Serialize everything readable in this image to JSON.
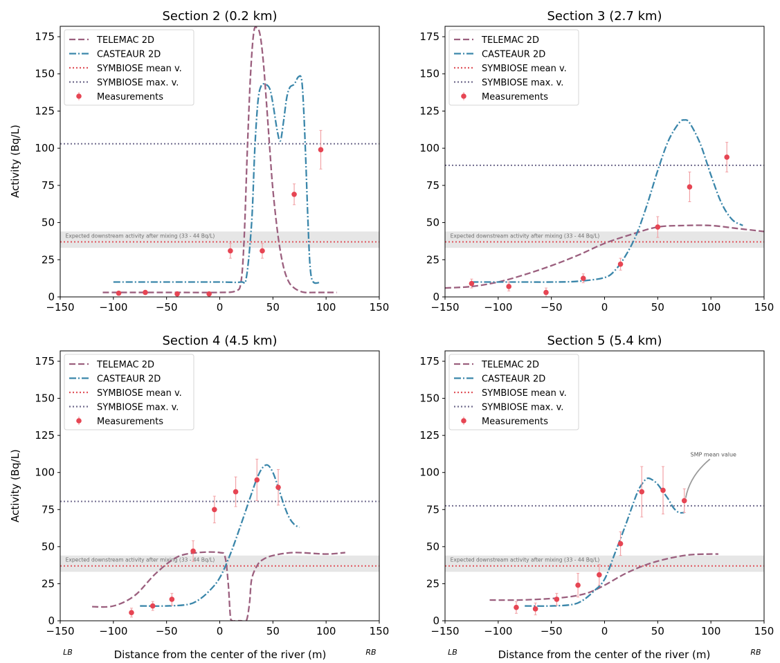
{
  "figure": {
    "xlabel": "Distance from the center of the river (m)",
    "ylabel": "Activity (Bq/L)",
    "left_bank_label": "LB",
    "right_bank_label": "RB",
    "band_label": "Expected downstream activity after mixing (33 - 44 Bq/L)"
  },
  "legend": [
    "TELEMAC 2D",
    "CASTEAUR 2D",
    "SYMBIOSE mean v.",
    "SYMBIOSE max. v.",
    "Measurements"
  ],
  "colors": {
    "telemac": "#9b5f7e",
    "casteaur": "#3a86aa",
    "symbiose_mean": "#e0535c",
    "symbiose_max": "#6f6a8c",
    "measurements": "#e64553",
    "errorbar": "#f2a1a5",
    "band": "#d9d9d9"
  },
  "chart_data": [
    {
      "type": "line",
      "title": "Section 2 (0.2 km)",
      "xlim": [
        -150,
        150
      ],
      "ylim": [
        0,
        182
      ],
      "xticks": [
        -150,
        -100,
        -50,
        0,
        50,
        100,
        150
      ],
      "yticks": [
        0,
        25,
        50,
        75,
        100,
        125,
        150,
        175
      ],
      "band": [
        33,
        44
      ],
      "symbiose_mean": 37,
      "symbiose_max": 103,
      "series": [
        {
          "name": "TELEMAC 2D",
          "x": [
            -110,
            -80,
            -40,
            0,
            15,
            20,
            23,
            26,
            29,
            32,
            35,
            38,
            41,
            44,
            47,
            50,
            55,
            60,
            65,
            70,
            75,
            80,
            90,
            100,
            110
          ],
          "y": [
            3,
            3,
            3,
            3,
            4,
            10,
            40,
            100,
            150,
            178,
            181,
            176,
            158,
            130,
            100,
            72,
            40,
            20,
            10,
            6,
            4,
            3,
            3,
            3,
            3
          ]
        },
        {
          "name": "CASTEAUR 2D",
          "x": [
            -100,
            -50,
            0,
            20,
            25,
            30,
            33,
            36,
            39,
            43,
            47,
            50,
            54,
            57,
            60,
            63,
            66,
            70,
            74,
            77,
            79,
            81,
            83,
            85,
            88,
            95
          ],
          "y": [
            10,
            10,
            10,
            10,
            13,
            50,
            100,
            132,
            142,
            143,
            140,
            130,
            112,
            105,
            118,
            134,
            141,
            143,
            148,
            146,
            125,
            90,
            50,
            20,
            10,
            10
          ]
        }
      ],
      "measurements": [
        {
          "x": -95,
          "y": 2.5,
          "err": 0.8
        },
        {
          "x": -70,
          "y": 3,
          "err": 0.8
        },
        {
          "x": -40,
          "y": 2,
          "err": 0.8
        },
        {
          "x": -10,
          "y": 2,
          "err": 0.8
        },
        {
          "x": 10,
          "y": 31,
          "err": 5
        },
        {
          "x": 40,
          "y": 31,
          "err": 5
        },
        {
          "x": 70,
          "y": 69,
          "err": 7
        },
        {
          "x": 95,
          "y": 99,
          "err": 13
        }
      ],
      "annotation": null
    },
    {
      "type": "line",
      "title": "Section 3 (2.7 km)",
      "xlim": [
        -150,
        150
      ],
      "ylim": [
        0,
        182
      ],
      "xticks": [
        -150,
        -100,
        -50,
        0,
        50,
        100,
        150
      ],
      "yticks": [
        0,
        25,
        50,
        75,
        100,
        125,
        150,
        175
      ],
      "band": [
        33,
        44
      ],
      "symbiose_mean": 37,
      "symbiose_max": 88.5,
      "series": [
        {
          "name": "TELEMAC 2D",
          "x": [
            -150,
            -125,
            -100,
            -75,
            -50,
            -25,
            0,
            25,
            50,
            75,
            100,
            125,
            150
          ],
          "y": [
            6,
            7,
            10,
            15,
            21,
            28,
            36,
            42,
            47,
            48,
            48,
            46,
            44
          ]
        },
        {
          "name": "CASTEAUR 2D",
          "x": [
            -125,
            -100,
            -75,
            -50,
            -25,
            0,
            10,
            20,
            30,
            40,
            50,
            60,
            70,
            75,
            80,
            90,
            100,
            110,
            120,
            130
          ],
          "y": [
            10,
            10,
            10,
            10,
            10.5,
            13,
            18,
            28,
            42,
            62,
            85,
            105,
            117,
            119,
            117,
            103,
            82,
            63,
            52,
            48
          ]
        }
      ],
      "measurements": [
        {
          "x": -125,
          "y": 9,
          "err": 3
        },
        {
          "x": -90,
          "y": 7,
          "err": 3
        },
        {
          "x": -55,
          "y": 3,
          "err": 3
        },
        {
          "x": -20,
          "y": 12.5,
          "err": 3
        },
        {
          "x": 15,
          "y": 22,
          "err": 4
        },
        {
          "x": 50,
          "y": 47,
          "err": 7
        },
        {
          "x": 80,
          "y": 74,
          "err": 10
        },
        {
          "x": 115,
          "y": 94,
          "err": 10
        }
      ],
      "annotation": null
    },
    {
      "type": "line",
      "title": "Section 4 (4.5 km)",
      "xlim": [
        -150,
        150
      ],
      "ylim": [
        0,
        182
      ],
      "xticks": [
        -150,
        -100,
        -50,
        0,
        50,
        100,
        150
      ],
      "yticks": [
        0,
        25,
        50,
        75,
        100,
        125,
        150,
        175
      ],
      "band": [
        33,
        44
      ],
      "symbiose_mean": 37,
      "symbiose_max": 80.5,
      "series": [
        {
          "name": "TELEMAC 2D",
          "x": [
            -120,
            -100,
            -80,
            -60,
            -40,
            -20,
            0,
            5,
            8,
            10,
            12,
            15,
            20,
            25,
            28,
            30,
            35,
            40,
            50,
            70,
            100,
            118
          ],
          "y": [
            9.5,
            10,
            17,
            32,
            43,
            46,
            46,
            43,
            25,
            3,
            0,
            0,
            0,
            0,
            12,
            28,
            37,
            41,
            44,
            46,
            45,
            46
          ]
        },
        {
          "name": "CASTEAUR 2D",
          "x": [
            -75,
            -50,
            -30,
            -20,
            -10,
            0,
            10,
            20,
            30,
            35,
            40,
            45,
            50,
            55,
            60,
            65,
            70,
            75
          ],
          "y": [
            10,
            10,
            11,
            14,
            20,
            29,
            45,
            65,
            86,
            96,
            103,
            105,
            100,
            90,
            79,
            70,
            65,
            63
          ]
        }
      ],
      "measurements": [
        {
          "x": -83,
          "y": 5.5,
          "err": 3
        },
        {
          "x": -63,
          "y": 10,
          "err": 3
        },
        {
          "x": -45,
          "y": 14.5,
          "err": 4
        },
        {
          "x": -25,
          "y": 47,
          "err": 7
        },
        {
          "x": -5,
          "y": 75,
          "err": 9
        },
        {
          "x": 15,
          "y": 87,
          "err": 10
        },
        {
          "x": 35,
          "y": 95,
          "err": 14
        },
        {
          "x": 55,
          "y": 90,
          "err": 12
        }
      ],
      "annotation": null
    },
    {
      "type": "line",
      "title": "Section 5 (5.4 km)",
      "xlim": [
        -150,
        150
      ],
      "ylim": [
        0,
        182
      ],
      "xticks": [
        -150,
        -100,
        -50,
        0,
        50,
        100,
        150
      ],
      "yticks": [
        0,
        25,
        50,
        75,
        100,
        125,
        150,
        175
      ],
      "band": [
        33,
        44
      ],
      "symbiose_mean": 37,
      "symbiose_max": 77.5,
      "series": [
        {
          "name": "TELEMAC 2D",
          "x": [
            -108,
            -80,
            -50,
            -30,
            -15,
            0,
            20,
            40,
            60,
            80,
            100,
            107
          ],
          "y": [
            14,
            14,
            15,
            16.5,
            19,
            24,
            32,
            38,
            42,
            44.5,
            45,
            45
          ]
        },
        {
          "name": "CASTEAUR 2D",
          "x": [
            -75,
            -50,
            -30,
            -20,
            -10,
            0,
            10,
            20,
            30,
            35,
            40,
            45,
            50,
            55,
            60,
            65,
            70,
            75
          ],
          "y": [
            10,
            10,
            11,
            14,
            20,
            28,
            46,
            65,
            85,
            92,
            96,
            95,
            92,
            87,
            82,
            76,
            73,
            73
          ]
        }
      ],
      "measurements": [
        {
          "x": -83,
          "y": 9,
          "err": 4
        },
        {
          "x": -65,
          "y": 8,
          "err": 4
        },
        {
          "x": -45,
          "y": 14.5,
          "err": 4
        },
        {
          "x": -25,
          "y": 24,
          "err": 8
        },
        {
          "x": -5,
          "y": 31,
          "err": 7
        },
        {
          "x": 15,
          "y": 52,
          "err": 8
        },
        {
          "x": 35,
          "y": 87,
          "err": 17
        },
        {
          "x": 55,
          "y": 88,
          "err": 16
        },
        {
          "x": 75,
          "y": 81,
          "err": 8
        }
      ],
      "annotation": {
        "text": "SMP mean value",
        "x": 75,
        "y": 81
      }
    }
  ]
}
